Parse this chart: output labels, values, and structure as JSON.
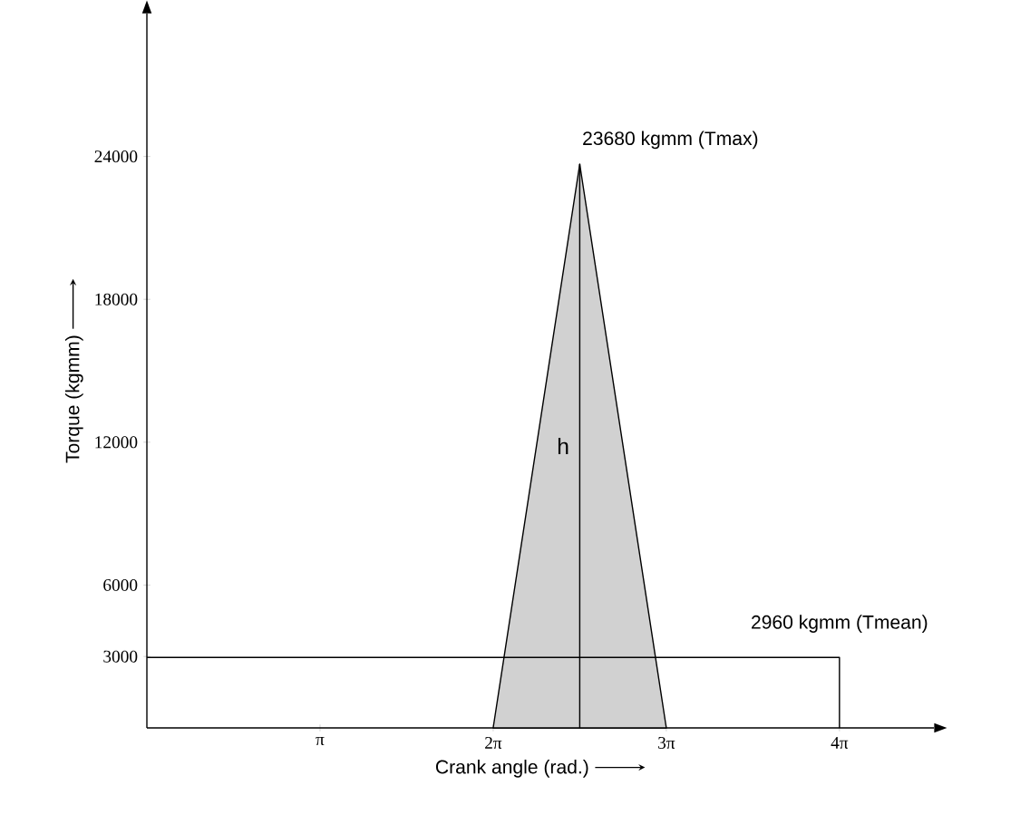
{
  "chart_data": {
    "type": "area",
    "xlabel": "Crank angle (rad.)",
    "ylabel": "Torque (kgmm)",
    "xlim": [
      0,
      14.28
    ],
    "ylim": [
      0,
      30000
    ],
    "xticks": [
      {
        "value": 3.1416,
        "label": "π"
      },
      {
        "value": 6.2832,
        "label": "2π"
      },
      {
        "value": 9.4248,
        "label": "3π"
      },
      {
        "value": 12.5664,
        "label": "4π"
      }
    ],
    "yticks": [
      3000,
      6000,
      12000,
      18000,
      24000
    ],
    "grid": false,
    "series": [
      {
        "color": "#000000",
        "x": [
          6.2832,
          7.854,
          9.4248
        ],
        "values": [
          0,
          23680,
          0
        ]
      },
      {
        "type": "line",
        "name": "h",
        "color": "#000000",
        "x": [
          7.854,
          7.854
        ],
        "values": [
          0,
          23680
        ]
      },
      {
        "type": "line",
        "color": "#000000",
        "x": [
          0,
          12.5664,
          12.5664
        ],
        "values": [
          2960,
          2960,
          0
        ]
      }
    ],
    "annotations": [
      {
        "text": "23680 kgmm (Tmax)",
        "x": 7.854,
        "y": 23680
      },
      {
        "text": "2960 kgmm (Tmean)",
        "x": 12.5664,
        "y": 2960
      }
    ]
  }
}
